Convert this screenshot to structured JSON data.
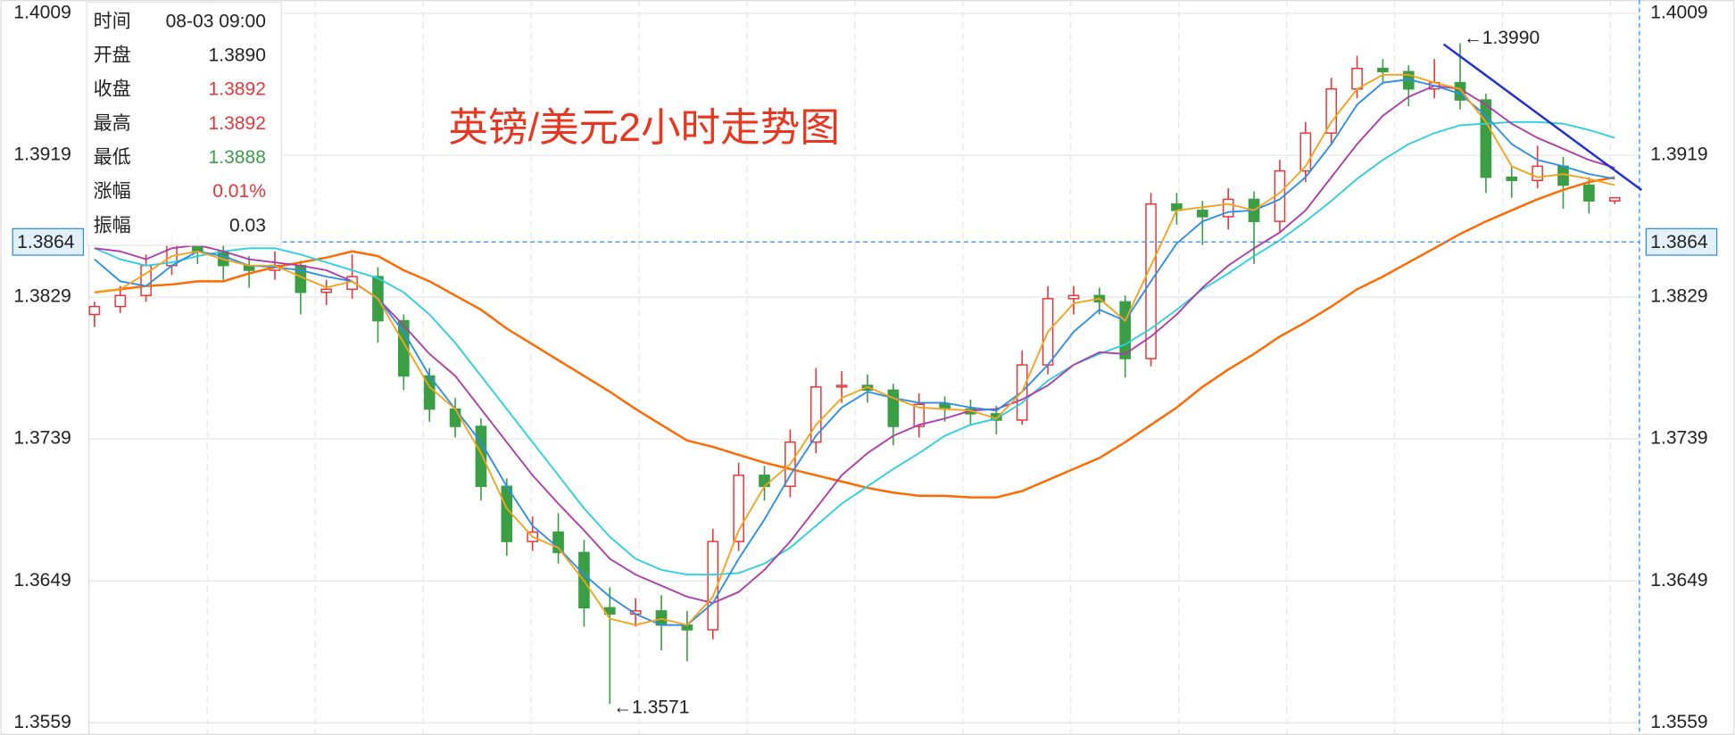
{
  "chart_data": {
    "type": "candlestick",
    "title": "英镑/美元2小时走势图",
    "ylim": [
      1.3559,
      1.4009
    ],
    "yticks": [
      1.3559,
      1.3649,
      1.3739,
      1.3829,
      1.3919,
      1.4009
    ],
    "grid": true,
    "up_color": "#e8363a",
    "down_color": "#3a9e45",
    "current_price": {
      "value": 1.3864,
      "label": "1.3864"
    },
    "candles": [
      [
        1.3818,
        1.3826,
        1.381,
        1.3823
      ],
      [
        1.3823,
        1.3836,
        1.3819,
        1.383
      ],
      [
        1.383,
        1.3856,
        1.3826,
        1.3849
      ],
      [
        1.3849,
        1.387,
        1.3843,
        1.3862
      ],
      [
        1.3862,
        1.3868,
        1.385,
        1.3858
      ],
      [
        1.3858,
        1.3862,
        1.384,
        1.3849
      ],
      [
        1.3849,
        1.3855,
        1.3835,
        1.3846
      ],
      [
        1.3846,
        1.3858,
        1.384,
        1.3849
      ],
      [
        1.3849,
        1.3852,
        1.3818,
        1.3832
      ],
      [
        1.3832,
        1.384,
        1.3824,
        1.3834
      ],
      [
        1.3834,
        1.3856,
        1.3828,
        1.3842
      ],
      [
        1.3842,
        1.3848,
        1.38,
        1.3814
      ],
      [
        1.3814,
        1.3818,
        1.377,
        1.3779
      ],
      [
        1.3779,
        1.3784,
        1.375,
        1.3758
      ],
      [
        1.3758,
        1.3765,
        1.374,
        1.3747
      ],
      [
        1.3747,
        1.3752,
        1.37,
        1.3709
      ],
      [
        1.3709,
        1.3714,
        1.3665,
        1.3674
      ],
      [
        1.3674,
        1.369,
        1.3668,
        1.368
      ],
      [
        1.368,
        1.3692,
        1.366,
        1.3667
      ],
      [
        1.3667,
        1.3675,
        1.362,
        1.3632
      ],
      [
        1.3632,
        1.3645,
        1.3571,
        1.3628
      ],
      [
        1.3628,
        1.3638,
        1.362,
        1.363
      ],
      [
        1.363,
        1.364,
        1.3605,
        1.3621
      ],
      [
        1.3621,
        1.363,
        1.3598,
        1.3618
      ],
      [
        1.3618,
        1.3682,
        1.3612,
        1.3674
      ],
      [
        1.3674,
        1.3724,
        1.3668,
        1.3716
      ],
      [
        1.3716,
        1.3722,
        1.37,
        1.3709
      ],
      [
        1.3709,
        1.3745,
        1.3702,
        1.3737
      ],
      [
        1.3737,
        1.3784,
        1.373,
        1.3772
      ],
      [
        1.3772,
        1.3782,
        1.3762,
        1.3773
      ],
      [
        1.3773,
        1.378,
        1.3762,
        1.377
      ],
      [
        1.377,
        1.3774,
        1.3735,
        1.3747
      ],
      [
        1.3747,
        1.3768,
        1.374,
        1.3761
      ],
      [
        1.3761,
        1.3766,
        1.375,
        1.3758
      ],
      [
        1.3758,
        1.3764,
        1.3748,
        1.3755
      ],
      [
        1.3755,
        1.376,
        1.3742,
        1.3751
      ],
      [
        1.3751,
        1.3795,
        1.3748,
        1.3786
      ],
      [
        1.3786,
        1.3836,
        1.378,
        1.3828
      ],
      [
        1.3828,
        1.3836,
        1.3818,
        1.383
      ],
      [
        1.383,
        1.3835,
        1.3818,
        1.3826
      ],
      [
        1.3826,
        1.383,
        1.3778,
        1.379
      ],
      [
        1.379,
        1.3895,
        1.3785,
        1.3888
      ],
      [
        1.3888,
        1.3895,
        1.3875,
        1.3884
      ],
      [
        1.3884,
        1.389,
        1.3862,
        1.388
      ],
      [
        1.388,
        1.3898,
        1.3872,
        1.3891
      ],
      [
        1.3891,
        1.3896,
        1.385,
        1.3877
      ],
      [
        1.3877,
        1.3916,
        1.387,
        1.3909
      ],
      [
        1.3909,
        1.394,
        1.3902,
        1.3933
      ],
      [
        1.3933,
        1.3968,
        1.3926,
        1.3961
      ],
      [
        1.3961,
        1.3982,
        1.3955,
        1.3974
      ],
      [
        1.3974,
        1.398,
        1.3964,
        1.3972
      ],
      [
        1.3972,
        1.3976,
        1.395,
        1.3961
      ],
      [
        1.3961,
        1.398,
        1.3955,
        1.3965
      ],
      [
        1.3965,
        1.399,
        1.3948,
        1.3954
      ],
      [
        1.3954,
        1.3958,
        1.3895,
        1.3905
      ],
      [
        1.3905,
        1.3912,
        1.3892,
        1.3903
      ],
      [
        1.3903,
        1.3925,
        1.3898,
        1.3912
      ],
      [
        1.3912,
        1.3918,
        1.3885,
        1.39
      ],
      [
        1.39,
        1.3905,
        1.3882,
        1.389
      ],
      [
        1.389,
        1.3892,
        1.3888,
        1.3892
      ]
    ],
    "lines": [
      {
        "color": "#ff6a00",
        "width": 2,
        "values": [
          1.3832,
          1.3834,
          1.3836,
          1.3837,
          1.3839,
          1.3839,
          1.3844,
          1.3848,
          1.3851,
          1.3854,
          1.3858,
          1.3855,
          1.3846,
          1.3839,
          1.383,
          1.3821,
          1.3809,
          1.3799,
          1.3789,
          1.3779,
          1.3769,
          1.3758,
          1.3748,
          1.3738,
          1.3734,
          1.3729,
          1.3724,
          1.372,
          1.3716,
          1.3712,
          1.3708,
          1.3705,
          1.3703,
          1.3703,
          1.3702,
          1.3702,
          1.3706,
          1.3713,
          1.372,
          1.3727,
          1.3737,
          1.3748,
          1.3759,
          1.3772,
          1.3783,
          1.3793,
          1.3804,
          1.3813,
          1.3823,
          1.3834,
          1.3842,
          1.3851,
          1.386,
          1.3869,
          1.3877,
          1.3884,
          1.3891,
          1.3897,
          1.3902,
          1.3905
        ]
      },
      {
        "color": "#29d0e0",
        "width": 1.5,
        "values": [
          1.386,
          1.3853,
          1.3849,
          1.3851,
          1.3855,
          1.3858,
          1.386,
          1.386,
          1.3856,
          1.3851,
          1.3846,
          1.3841,
          1.3832,
          1.3818,
          1.38,
          1.3779,
          1.3758,
          1.3737,
          1.3716,
          1.3695,
          1.3677,
          1.3663,
          1.3656,
          1.3653,
          1.3653,
          1.3654,
          1.366,
          1.367,
          1.3684,
          1.3698,
          1.3709,
          1.372,
          1.373,
          1.3741,
          1.3748,
          1.3752,
          1.3762,
          1.3776,
          1.3786,
          1.3793,
          1.3799,
          1.3809,
          1.3821,
          1.3834,
          1.3844,
          1.3855,
          1.3865,
          1.3877,
          1.389,
          1.3904,
          1.3916,
          1.3926,
          1.3933,
          1.3938,
          1.3939,
          1.394,
          1.394,
          1.3939,
          1.3935,
          1.393
        ]
      },
      {
        "color": "#b03aa8",
        "width": 1.5,
        "values": [
          1.386,
          1.3858,
          1.3853,
          1.386,
          1.3862,
          1.3858,
          1.3853,
          1.3851,
          1.3849,
          1.3846,
          1.3839,
          1.3828,
          1.3811,
          1.3793,
          1.3779,
          1.3758,
          1.3737,
          1.3716,
          1.3698,
          1.3681,
          1.3663,
          1.3653,
          1.3646,
          1.3639,
          1.3635,
          1.3642,
          1.3656,
          1.3674,
          1.3695,
          1.3716,
          1.373,
          1.3741,
          1.3748,
          1.3752,
          1.3757,
          1.3758,
          1.3764,
          1.3773,
          1.3786,
          1.3794,
          1.3793,
          1.3804,
          1.3818,
          1.3835,
          1.3849,
          1.386,
          1.387,
          1.3884,
          1.3905,
          1.3926,
          1.3944,
          1.3956,
          1.3963,
          1.3961,
          1.3951,
          1.3939,
          1.393,
          1.3923,
          1.3916,
          1.3911
        ]
      },
      {
        "color": "#2b8de8",
        "width": 1.5,
        "values": [
          1.3853,
          1.3839,
          1.3836,
          1.3849,
          1.3858,
          1.3855,
          1.3849,
          1.3848,
          1.3846,
          1.3842,
          1.3839,
          1.3828,
          1.3807,
          1.3779,
          1.3758,
          1.3737,
          1.3709,
          1.3684,
          1.367,
          1.3653,
          1.3639,
          1.3628,
          1.3621,
          1.3621,
          1.3635,
          1.3663,
          1.3688,
          1.3716,
          1.3741,
          1.3759,
          1.3769,
          1.3765,
          1.3762,
          1.3762,
          1.3759,
          1.3757,
          1.3769,
          1.3786,
          1.3807,
          1.3821,
          1.3814,
          1.3839,
          1.3863,
          1.3877,
          1.3883,
          1.3884,
          1.3891,
          1.3905,
          1.3926,
          1.3951,
          1.3965,
          1.3967,
          1.3963,
          1.3958,
          1.3944,
          1.3926,
          1.3916,
          1.3912,
          1.3907,
          1.3904
        ]
      },
      {
        "color": "#f5a21b",
        "width": 1.5,
        "values": [
          1.3832,
          1.3834,
          1.3844,
          1.3855,
          1.3858,
          1.3853,
          1.3849,
          1.3849,
          1.3842,
          1.3835,
          1.3839,
          1.3828,
          1.38,
          1.3772,
          1.3758,
          1.373,
          1.3695,
          1.3677,
          1.367,
          1.3649,
          1.3625,
          1.3621,
          1.3625,
          1.3621,
          1.3639,
          1.3681,
          1.3709,
          1.3723,
          1.3748,
          1.3765,
          1.3772,
          1.3765,
          1.3759,
          1.3758,
          1.3757,
          1.3752,
          1.3769,
          1.3807,
          1.3825,
          1.3828,
          1.3814,
          1.3849,
          1.3884,
          1.3886,
          1.3888,
          1.3884,
          1.3895,
          1.3912,
          1.394,
          1.3961,
          1.397,
          1.397,
          1.3965,
          1.3961,
          1.394,
          1.3912,
          1.3905,
          1.3907,
          1.3904,
          1.39
        ]
      }
    ],
    "annotations": [
      {
        "text": "←1.3990",
        "candle": 53
      },
      {
        "text": "←1.3571",
        "candle": 20
      }
    ],
    "tooltip": [
      {
        "label": "时间",
        "value": "08-03 09:00",
        "color": "#222222"
      },
      {
        "label": "开盘",
        "value": "1.3890",
        "color": "#222222"
      },
      {
        "label": "收盘",
        "value": "1.3892",
        "color": "#e8363a"
      },
      {
        "label": "最高",
        "value": "1.3892",
        "color": "#e8363a"
      },
      {
        "label": "最低",
        "value": "1.3888",
        "color": "#3a9e45"
      },
      {
        "label": "涨幅",
        "value": "0.01%",
        "color": "#e8363a"
      },
      {
        "label": "振幅",
        "value": "0.03",
        "color": "#222222"
      }
    ]
  }
}
